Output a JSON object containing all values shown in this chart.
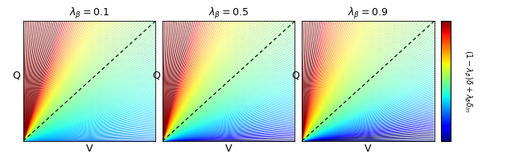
{
  "lambda_values": [
    0.1,
    0.5,
    0.9
  ],
  "lambda_labels": [
    "0.1",
    "0.5",
    "0.9"
  ],
  "colorbar_label": "$(1 - \\lambda_\\beta)\\delta + \\lambda_\\beta \\delta_{ln}$",
  "n_lines": 120,
  "xlabel": "V",
  "ylabel": "Q",
  "figsize": [
    6.4,
    2.02
  ],
  "dpi": 100,
  "line_width": 0.55,
  "diag_lw": 0.8
}
